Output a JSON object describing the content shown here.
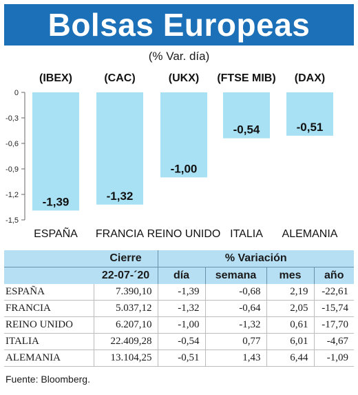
{
  "header": {
    "title": "Bolsas Europeas",
    "subtitle": "(% Var. día)"
  },
  "colors": {
    "title_bg": "#1b70b7",
    "bar": "#a8e1f4",
    "table_header_bg": "#b6dff4"
  },
  "chart_data": {
    "type": "bar",
    "categories": [
      "ESPAÑA",
      "FRANCIA",
      "REINO UNIDO",
      "ITALIA",
      "ALEMANIA"
    ],
    "index_labels": [
      "(IBEX)",
      "(CAC)",
      "(UKX)",
      "(FTSE MIB)",
      "(DAX)"
    ],
    "values": [
      -1.39,
      -1.32,
      -1.0,
      -0.54,
      -0.51
    ],
    "value_labels": [
      "-1,39",
      "-1,32",
      "-1,00",
      "-0,54",
      "-0,51"
    ],
    "yticks": [
      0,
      -0.3,
      -0.6,
      -0.9,
      -1.2,
      -1.5
    ],
    "ytick_labels": [
      "0",
      "-0,3",
      "-0,6",
      "-0,9",
      "-1,2",
      "-1,5"
    ],
    "ylim": [
      -1.5,
      0
    ],
    "grid": false,
    "legend": "none"
  },
  "table": {
    "headers": {
      "cierre": "Cierre",
      "variacion": "% Variación",
      "date": "22-07-´20",
      "dia": "día",
      "semana": "semana",
      "mes": "mes",
      "anio": "año"
    },
    "rows": [
      {
        "name": "ESPAÑA",
        "cierre": "7.390,10",
        "dia": "-1,39",
        "semana": "-0,68",
        "mes": "2,19",
        "anio": "-22,61"
      },
      {
        "name": "FRANCIA",
        "cierre": "5.037,12",
        "dia": "-1,32",
        "semana": "-0,64",
        "mes": "2,05",
        "anio": "-15,74"
      },
      {
        "name": "REINO UNIDO",
        "cierre": "6.207,10",
        "dia": "-1,00",
        "semana": "-1,32",
        "mes": "0,61",
        "anio": "-17,70"
      },
      {
        "name": "ITALIA",
        "cierre": "22.409,28",
        "dia": "-0,54",
        "semana": "0,77",
        "mes": "6,01",
        "anio": "-4,67"
      },
      {
        "name": "ALEMANIA",
        "cierre": "13.104,25",
        "dia": "-0,51",
        "semana": "1,43",
        "mes": "6,44",
        "anio": "-1,09"
      }
    ]
  },
  "footer": {
    "source": "Fuente: Bloomberg."
  }
}
